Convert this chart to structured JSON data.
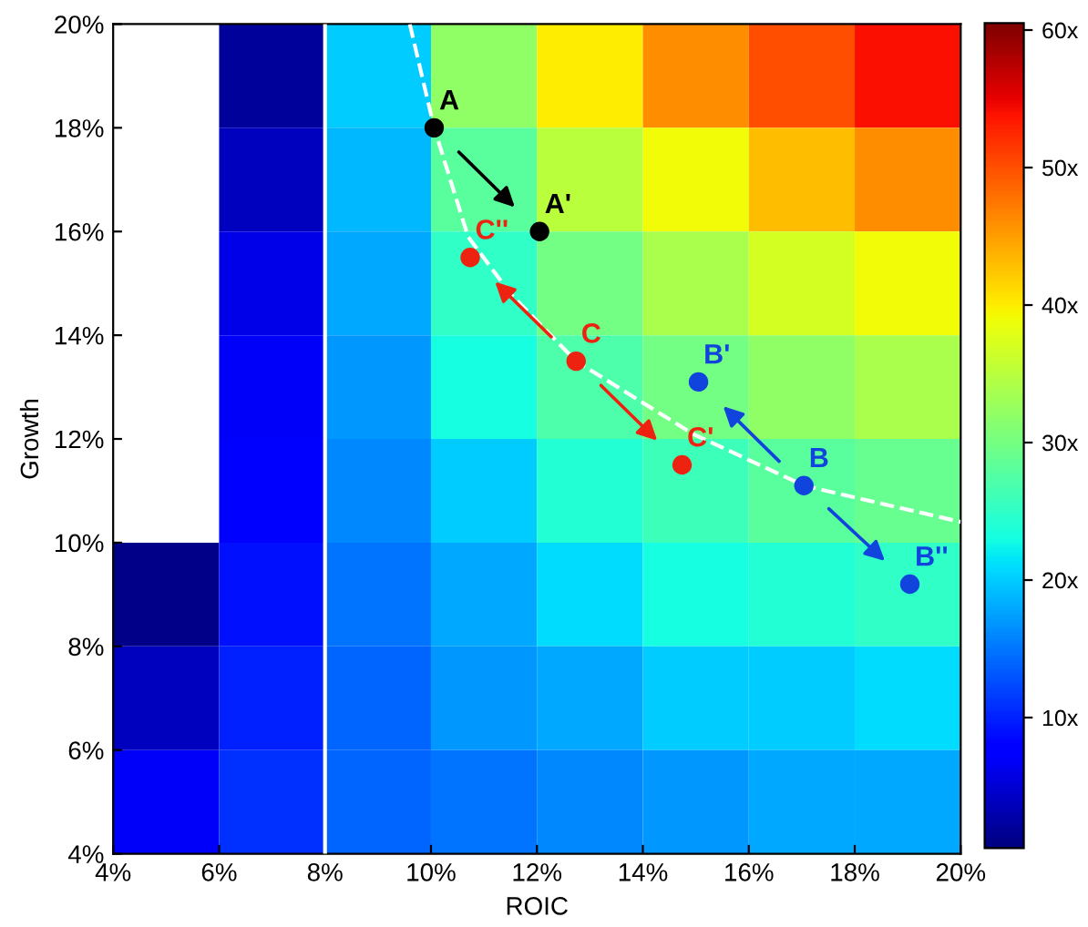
{
  "chart_data": {
    "type": "heatmap",
    "xlabel": "ROIC",
    "ylabel": "Growth",
    "cells": [
      [
        null,
        2,
        20,
        32,
        40,
        46,
        50,
        54
      ],
      [
        null,
        4,
        19,
        28,
        35,
        39,
        43,
        46
      ],
      [
        null,
        6,
        18,
        25,
        30,
        34,
        37,
        39
      ],
      [
        null,
        7,
        17,
        23,
        27,
        30,
        32,
        34
      ],
      [
        null,
        8,
        16,
        20,
        24,
        26,
        28,
        29
      ],
      [
        1,
        9,
        15,
        18,
        21,
        23,
        24,
        25
      ],
      [
        4,
        10,
        14,
        17,
        18,
        20,
        20,
        21
      ],
      [
        7,
        11,
        14,
        15,
        16,
        17,
        18,
        18
      ]
    ],
    "clim": [
      0.5,
      60.5
    ],
    "cticks": [
      {
        "value": 10,
        "label": "10x"
      },
      {
        "value": 20,
        "label": "20x"
      },
      {
        "value": 30,
        "label": "30x"
      },
      {
        "value": 40,
        "label": "40x"
      },
      {
        "value": 50,
        "label": "50x"
      },
      {
        "value": 60,
        "label": "60x"
      }
    ],
    "xlim": [
      4,
      20
    ],
    "xticks": [
      {
        "value": 4,
        "label": "4%"
      },
      {
        "value": 6,
        "label": "6%"
      },
      {
        "value": 8,
        "label": "8%"
      },
      {
        "value": 10,
        "label": "10%"
      },
      {
        "value": 12,
        "label": "12%"
      },
      {
        "value": 14,
        "label": "14%"
      },
      {
        "value": 16,
        "label": "16%"
      },
      {
        "value": 18,
        "label": "18%"
      },
      {
        "value": 20,
        "label": "20%"
      }
    ],
    "ylim": [
      4,
      20
    ],
    "yticks": [
      {
        "value": 4,
        "label": "4%"
      },
      {
        "value": 6,
        "label": "6%"
      },
      {
        "value": 8,
        "label": "8%"
      },
      {
        "value": 10,
        "label": "10%"
      },
      {
        "value": 12,
        "label": "12%"
      },
      {
        "value": 14,
        "label": "14%"
      },
      {
        "value": 16,
        "label": "16%"
      },
      {
        "value": 18,
        "label": "18%"
      },
      {
        "value": 20,
        "label": "20%"
      }
    ],
    "series": [
      {
        "type": "line",
        "color": "#ffffff",
        "line_style": "dashed",
        "x": [
          9.6,
          10.06,
          10.7,
          11.5,
          12.74,
          14.94,
          17.04,
          20
        ],
        "values": [
          20,
          18.0,
          15.9,
          14.8,
          13.5,
          12.1,
          11.1,
          10.4
        ]
      },
      {
        "type": "scatter",
        "marker": "circle",
        "color": "#000000",
        "x": [
          10.06,
          12.05
        ],
        "values": [
          18.0,
          16.0
        ],
        "value_labels": [
          "A",
          "A'"
        ]
      },
      {
        "type": "scatter",
        "marker": "circle",
        "color": "#ee2211",
        "x": [
          12.74,
          10.74,
          14.74
        ],
        "values": [
          13.5,
          15.5,
          11.5
        ],
        "value_labels": [
          "C",
          "C''",
          "C'"
        ]
      },
      {
        "type": "scatter",
        "marker": "circle",
        "color": "#1144dd",
        "x": [
          17.04,
          15.05,
          19.04
        ],
        "values": [
          11.1,
          13.1,
          9.2
        ],
        "value_labels": [
          "B",
          "B'",
          "B''"
        ]
      }
    ],
    "ref_lines": [
      {
        "axis": "x",
        "value": 8,
        "color": "#ffffff"
      }
    ],
    "grid": false,
    "legend": false
  }
}
